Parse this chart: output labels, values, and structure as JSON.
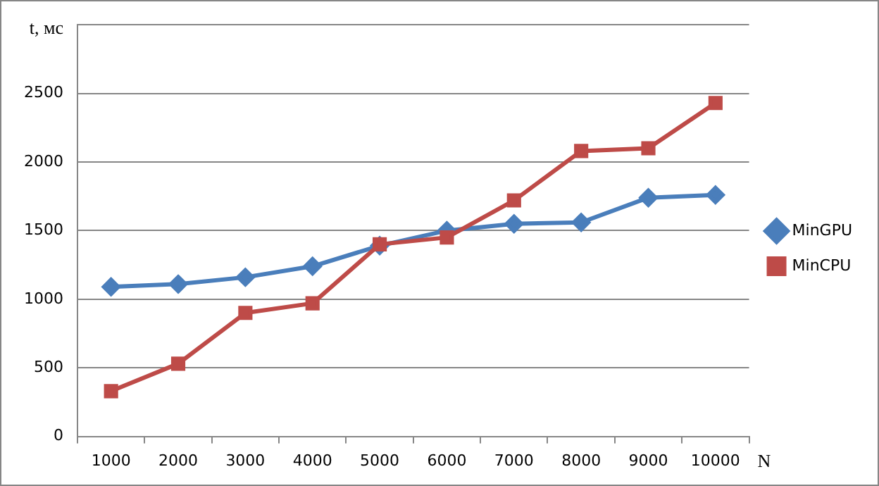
{
  "chart_data": {
    "type": "line",
    "xlabel": "N",
    "ylabel": "t, мс",
    "categories": [
      "1000",
      "2000",
      "3000",
      "4000",
      "5000",
      "6000",
      "7000",
      "8000",
      "9000",
      "10000"
    ],
    "series": [
      {
        "name": "MinGPU",
        "color": "#4a7ebb",
        "marker": "diamond",
        "values": [
          1090,
          1110,
          1160,
          1240,
          1390,
          1500,
          1550,
          1560,
          1740,
          1760
        ]
      },
      {
        "name": "MinCPU",
        "color": "#be4b48",
        "marker": "square",
        "values": [
          330,
          530,
          900,
          970,
          1400,
          1450,
          1720,
          2080,
          2100,
          2430
        ]
      }
    ],
    "ylim": [
      0,
      3000
    ],
    "yticks": [
      0,
      500,
      1000,
      1500,
      2000,
      2500,
      {
        "value": 3000,
        "label": null
      }
    ],
    "grid": "y",
    "legend": "right",
    "line_style": "solid"
  }
}
